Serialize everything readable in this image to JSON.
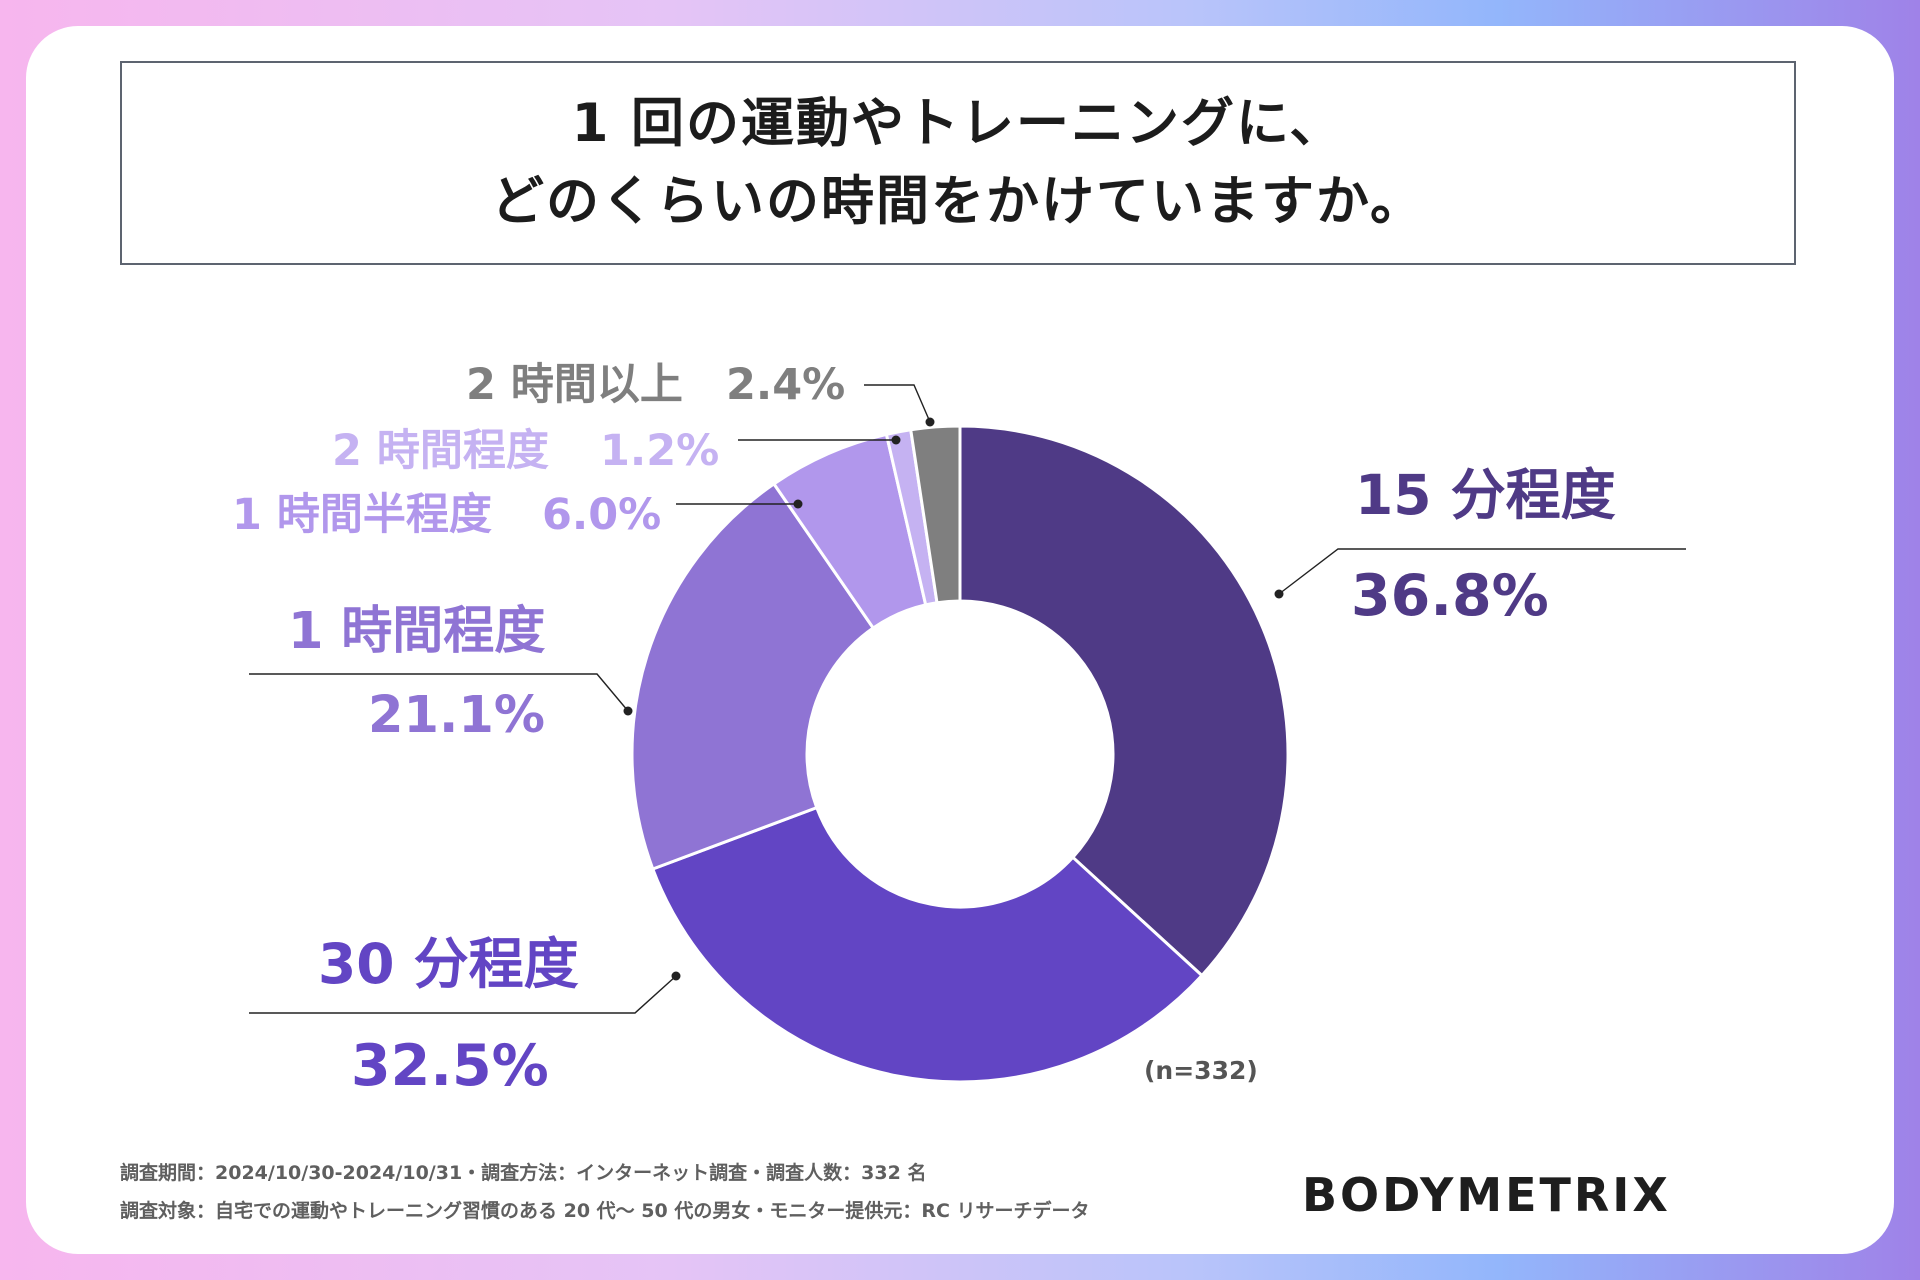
{
  "title": {
    "line1": "1 回の運動やトレーニングに、",
    "line2": "どのくらいの時間をかけていますか。"
  },
  "chart_data": {
    "type": "pie",
    "variant": "donut",
    "title": "1 回の運動やトレーニングに、どのくらいの時間をかけていますか。",
    "sample_size": "(n=332)",
    "legend": "none",
    "slices": [
      {
        "name": "15 分程度",
        "value": 36.8,
        "label": "36.8%",
        "color": "#4f3a86"
      },
      {
        "name": "30 分程度",
        "value": 32.5,
        "label": "32.5%",
        "color": "#6245c4"
      },
      {
        "name": "1 時間程度",
        "value": 21.1,
        "label": "21.1%",
        "color": "#8f74d4"
      },
      {
        "name": "1 時間半程度",
        "value": 6.0,
        "label": "6.0%",
        "color": "#b197ec"
      },
      {
        "name": "2 時間程度",
        "value": 1.2,
        "label": "1.2%",
        "color": "#c5b2f2"
      },
      {
        "name": "2 時間以上",
        "value": 2.4,
        "label": "2.4%",
        "color": "#7f7f7f"
      }
    ]
  },
  "footer": {
    "line1": "調査期間：2024/10/30-2024/10/31・調査方法：インターネット調査・調査人数：332 名",
    "line2": "調査対象：自宅での運動やトレーニング習慣のある 20 代〜 50 代の男女・モニター提供元：RC リサーチデータ"
  },
  "brand": {
    "name": "BODYMETRIX"
  }
}
